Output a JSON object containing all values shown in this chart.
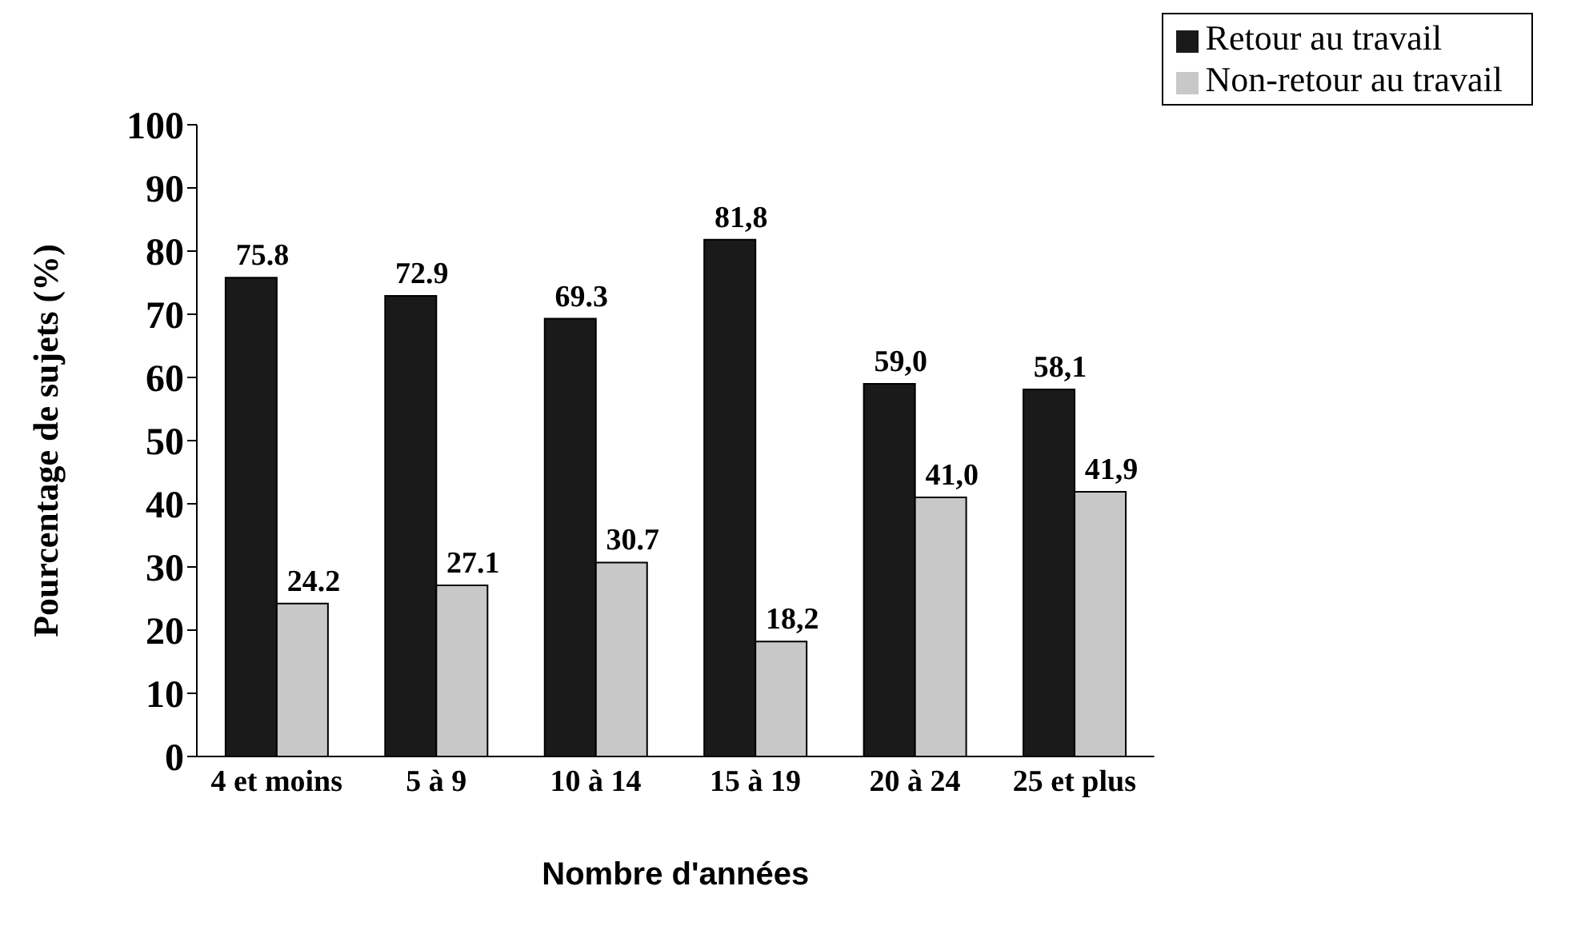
{
  "chart_data": {
    "type": "bar",
    "xlabel": "Nombre d'années",
    "ylabel": "Pourcentage de sujets (%)",
    "categories": [
      "4 et moins",
      "5 à 9",
      "10 à 14",
      "15 à 19",
      "20 à 24",
      "25 et plus"
    ],
    "series": [
      {
        "name": "Retour au travail",
        "color": "#1a1a1a",
        "values": [
          75.8,
          72.9,
          69.3,
          81.8,
          59.0,
          58.1
        ],
        "value_labels": [
          "75.8",
          "72.9",
          "69.3",
          "81,8",
          "59,0",
          "58,1"
        ]
      },
      {
        "name": "Non-retour au travail",
        "color": "#c8c8c8",
        "values": [
          24.2,
          27.1,
          30.7,
          18.2,
          41.0,
          41.9
        ],
        "value_labels": [
          "24.2",
          "27.1",
          "30.7",
          "18,2",
          "41,0",
          "41,9"
        ]
      }
    ],
    "ylim": [
      0,
      100
    ],
    "yticks": [
      0,
      10,
      20,
      30,
      40,
      50,
      60,
      70,
      80,
      90,
      100
    ],
    "grid": false,
    "legend": "top right"
  }
}
